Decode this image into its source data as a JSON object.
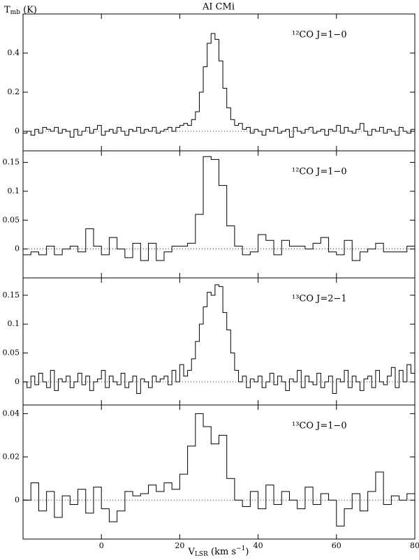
{
  "chart_data": [
    {
      "type": "step",
      "title": "AI CMi",
      "ylabel": {
        "main": "T",
        "sub": "mb",
        "rest": " (K)"
      },
      "label": "¹²CO J=1−0",
      "color": "#000000",
      "xlim": [
        -20,
        80
      ],
      "xticks": [
        0,
        20,
        40,
        60,
        80
      ],
      "ylim": [
        -0.1,
        0.6
      ],
      "yticks": [
        0,
        0.2,
        0.4
      ],
      "x": [
        -19.5,
        -18.5,
        -17.5,
        -16.5,
        -15.5,
        -14.5,
        -13.5,
        -12.5,
        -11.5,
        -10.5,
        -9.5,
        -8.5,
        -7.5,
        -6.5,
        -5.5,
        -4.5,
        -3.5,
        -2.5,
        -1.5,
        -0.5,
        0.5,
        1.5,
        2.5,
        3.5,
        4.5,
        5.5,
        6.5,
        7.5,
        8.5,
        9.5,
        10.5,
        11.5,
        12.5,
        13.5,
        14.5,
        15.5,
        16.5,
        17.5,
        18.5,
        19.5,
        20.5,
        21.5,
        22.5,
        23.5,
        24.5,
        25.5,
        26.5,
        27.5,
        28.5,
        29.5,
        30.5,
        31.5,
        32.5,
        33.5,
        34.5,
        35.5,
        36.5,
        37.5,
        38.5,
        39.5,
        40.5,
        41.5,
        42.5,
        43.5,
        44.5,
        45.5,
        46.5,
        47.5,
        48.5,
        49.5,
        50.5,
        51.5,
        52.5,
        53.5,
        54.5,
        55.5,
        56.5,
        57.5,
        58.5,
        59.5,
        60.5,
        61.5,
        62.5,
        63.5,
        64.5,
        65.5,
        66.5,
        67.5,
        68.5,
        69.5,
        70.5,
        71.5,
        72.5,
        73.5,
        74.5,
        75.5,
        76.5,
        77.5,
        78.5,
        79.5
      ],
      "values": [
        -0.01,
        0.0,
        -0.02,
        0.01,
        -0.01,
        0.02,
        0.01,
        0.0,
        0.02,
        -0.01,
        0.01,
        0.0,
        -0.03,
        0.01,
        -0.02,
        0.0,
        0.02,
        -0.01,
        0.01,
        0.03,
        -0.02,
        0.0,
        0.01,
        -0.01,
        0.02,
        0.0,
        -0.02,
        0.01,
        0.0,
        0.02,
        -0.01,
        0.01,
        0.0,
        0.02,
        -0.01,
        0.0,
        0.01,
        0.02,
        0.0,
        0.02,
        0.03,
        0.04,
        0.03,
        0.06,
        0.1,
        0.2,
        0.33,
        0.45,
        0.5,
        0.47,
        0.36,
        0.22,
        0.12,
        0.06,
        0.03,
        0.04,
        0.01,
        0.02,
        -0.01,
        0.01,
        0.0,
        -0.02,
        0.01,
        0.0,
        0.02,
        -0.01,
        0.0,
        0.01,
        -0.03,
        0.02,
        0.0,
        -0.01,
        0.01,
        0.02,
        -0.01,
        0.0,
        0.01,
        -0.02,
        0.01,
        0.0,
        0.03,
        -0.01,
        0.02,
        0.0,
        -0.01,
        0.01,
        0.04,
        0.0,
        -0.02,
        0.01,
        0.0,
        0.02,
        -0.01,
        0.01,
        0.0,
        -0.02,
        0.02,
        0.0,
        -0.01,
        0.01
      ]
    },
    {
      "type": "step",
      "label": "¹²CO J=1−0",
      "color": "#000000",
      "xlim": [
        -20,
        80
      ],
      "xticks": [
        0,
        20,
        40,
        60,
        80
      ],
      "ylim": [
        -0.05,
        0.17
      ],
      "yticks": [
        0,
        0.05,
        0.1,
        0.15
      ],
      "x": [
        -19,
        -17,
        -15,
        -13,
        -11,
        -9,
        -7,
        -5,
        -3,
        -1,
        1,
        3,
        5,
        7,
        9,
        11,
        13,
        15,
        17,
        19,
        21,
        23,
        25,
        27,
        29,
        31,
        33,
        35,
        37,
        39,
        41,
        43,
        45,
        47,
        49,
        51,
        53,
        55,
        57,
        59,
        61,
        63,
        65,
        67,
        69,
        71,
        73,
        75,
        77,
        79
      ],
      "values": [
        -0.01,
        -0.005,
        -0.01,
        0.005,
        -0.01,
        0.0,
        0.005,
        -0.005,
        0.035,
        0.005,
        -0.01,
        0.02,
        0.0,
        -0.015,
        0.01,
        -0.02,
        0.01,
        -0.02,
        -0.005,
        0.005,
        0.005,
        0.01,
        0.06,
        0.16,
        0.155,
        0.11,
        0.04,
        0.005,
        -0.01,
        -0.005,
        0.025,
        0.015,
        -0.01,
        0.015,
        0.005,
        0.005,
        0.0,
        0.01,
        0.02,
        -0.005,
        -0.01,
        0.015,
        -0.02,
        -0.005,
        0.0,
        0.01,
        -0.005,
        -0.005,
        -0.005,
        0.005
      ]
    },
    {
      "type": "step",
      "label": "¹³CO J=2−1",
      "color": "#000000",
      "xlim": [
        -20,
        80
      ],
      "xticks": [
        0,
        20,
        40,
        60,
        80
      ],
      "ylim": [
        -0.04,
        0.18
      ],
      "yticks": [
        0,
        0.05,
        0.1,
        0.15
      ],
      "x": [
        -19.5,
        -18.5,
        -17.5,
        -16.5,
        -15.5,
        -14.5,
        -13.5,
        -12.5,
        -11.5,
        -10.5,
        -9.5,
        -8.5,
        -7.5,
        -6.5,
        -5.5,
        -4.5,
        -3.5,
        -2.5,
        -1.5,
        -0.5,
        0.5,
        1.5,
        2.5,
        3.5,
        4.5,
        5.5,
        6.5,
        7.5,
        8.5,
        9.5,
        10.5,
        11.5,
        12.5,
        13.5,
        14.5,
        15.5,
        16.5,
        17.5,
        18.5,
        19.5,
        20.5,
        21.5,
        22.5,
        23.5,
        24.5,
        25.5,
        26.5,
        27.5,
        28.5,
        29.5,
        30.5,
        31.5,
        32.5,
        33.5,
        34.5,
        35.5,
        36.5,
        37.5,
        38.5,
        39.5,
        40.5,
        41.5,
        42.5,
        43.5,
        44.5,
        45.5,
        46.5,
        47.5,
        48.5,
        49.5,
        50.5,
        51.5,
        52.5,
        53.5,
        54.5,
        55.5,
        56.5,
        57.5,
        58.5,
        59.5,
        60.5,
        61.5,
        62.5,
        63.5,
        64.5,
        65.5,
        66.5,
        67.5,
        68.5,
        69.5,
        70.5,
        71.5,
        72.5,
        73.5,
        74.5,
        75.5,
        76.5,
        77.5,
        78.5,
        79.5
      ],
      "values": [
        0.0,
        -0.01,
        0.01,
        -0.005,
        0.015,
        0.0,
        -0.01,
        0.02,
        -0.015,
        0.005,
        0.0,
        0.01,
        -0.01,
        0.0,
        0.015,
        -0.005,
        0.01,
        -0.015,
        0.0,
        0.005,
        0.02,
        -0.01,
        0.01,
        0.0,
        -0.005,
        0.015,
        -0.01,
        0.0,
        0.01,
        -0.02,
        0.005,
        0.0,
        -0.01,
        0.01,
        0.0,
        0.005,
        0.01,
        -0.005,
        0.02,
        0.0,
        0.03,
        0.01,
        0.02,
        0.04,
        0.07,
        0.1,
        0.13,
        0.155,
        0.15,
        0.168,
        0.165,
        0.12,
        0.09,
        0.05,
        0.02,
        0.0,
        0.01,
        -0.01,
        0.005,
        0.0,
        0.01,
        -0.01,
        0.0,
        0.015,
        -0.005,
        0.01,
        0.0,
        -0.015,
        0.005,
        0.0,
        0.02,
        -0.01,
        0.01,
        0.0,
        -0.005,
        0.015,
        -0.01,
        0.0,
        0.01,
        -0.02,
        0.005,
        0.0,
        0.02,
        -0.01,
        0.01,
        0.0,
        -0.015,
        0.005,
        0.01,
        -0.01,
        0.02,
        0.0,
        -0.005,
        0.01,
        0.025,
        -0.01,
        0.02,
        0.0,
        0.03,
        0.015
      ]
    },
    {
      "type": "step",
      "label": "¹³CO J=1−0",
      "color": "#000000",
      "xlabel": {
        "main": "V",
        "sub": "LSR",
        "mid": " (km s",
        "sup": "−1",
        "end": ")"
      },
      "xlim": [
        -20,
        80
      ],
      "xticks": [
        0,
        20,
        40,
        60,
        80
      ],
      "ylim": [
        -0.018,
        0.044
      ],
      "yticks": [
        0,
        0.02,
        0.04
      ],
      "x": [
        -19,
        -17,
        -15,
        -13,
        -11,
        -9,
        -7,
        -5,
        -3,
        -1,
        1,
        3,
        5,
        7,
        9,
        11,
        13,
        15,
        17,
        19,
        21,
        23,
        25,
        27,
        29,
        31,
        33,
        35,
        37,
        39,
        41,
        43,
        45,
        47,
        49,
        51,
        53,
        55,
        57,
        59,
        61,
        63,
        65,
        67,
        69,
        71,
        73,
        75,
        77,
        79
      ],
      "values": [
        0.0,
        0.008,
        -0.005,
        0.004,
        -0.008,
        0.002,
        -0.002,
        0.005,
        -0.006,
        0.006,
        -0.004,
        -0.01,
        -0.005,
        0.004,
        0.002,
        0.003,
        0.007,
        0.004,
        0.008,
        0.005,
        0.012,
        0.025,
        0.04,
        0.034,
        0.026,
        0.03,
        0.01,
        0.0,
        -0.003,
        0.004,
        -0.004,
        0.007,
        -0.002,
        0.004,
        0.0,
        -0.004,
        0.006,
        -0.002,
        0.003,
        0.0,
        -0.012,
        -0.004,
        0.003,
        -0.005,
        0.004,
        0.013,
        -0.002,
        0.002,
        0.0,
        0.003
      ]
    }
  ]
}
